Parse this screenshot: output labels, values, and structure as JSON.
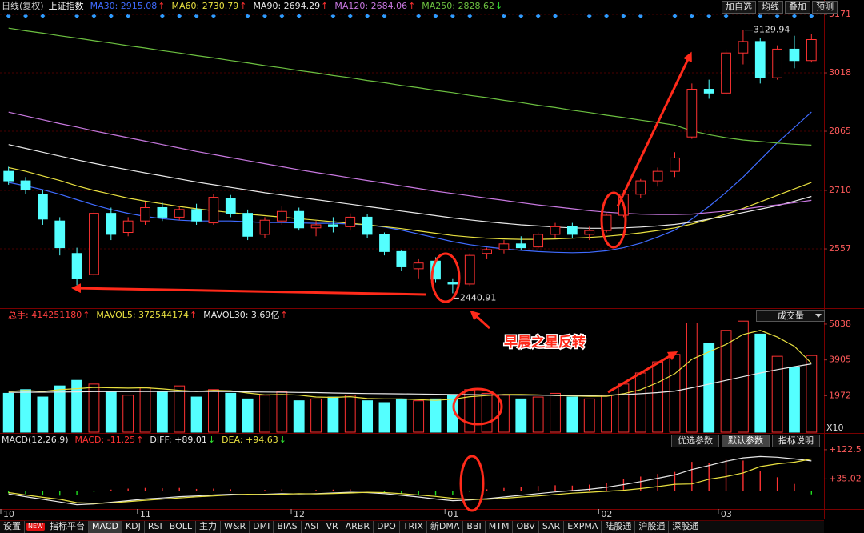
{
  "ui": {
    "period": "日线(复权)",
    "symbol": "上证指数",
    "buttons": [
      "加自选",
      "均线",
      "叠加",
      "预测"
    ],
    "volume_selector": "成交量",
    "indicator_buttons": [
      "优选参数",
      "默认参数",
      "指标说明"
    ],
    "active_indicator_button": 1,
    "tabs": [
      "设置",
      "NEW",
      "指标平台",
      "MACD",
      "KDJ",
      "RSI",
      "BOLL",
      "主力",
      "W&R",
      "DMI",
      "BIAS",
      "ASI",
      "VR",
      "ARBR",
      "DPO",
      "TRIX",
      "新DMA",
      "BBI",
      "MTM",
      "OBV",
      "SAR",
      "EXPMA",
      "陆股通",
      "沪股通",
      "深股通"
    ],
    "badge_tab": 1,
    "active_tab": 3
  },
  "chart_data": [
    {
      "type": "candlestick",
      "annotation": "早晨之星反转",
      "categories": [
        "10",
        null,
        null,
        null,
        null,
        null,
        null,
        null,
        "11",
        null,
        null,
        null,
        null,
        null,
        null,
        null,
        null,
        "12",
        null,
        null,
        null,
        null,
        null,
        null,
        null,
        null,
        "01",
        null,
        null,
        null,
        null,
        null,
        null,
        null,
        null,
        "02",
        null,
        null,
        null,
        null,
        null,
        null,
        "03",
        null,
        null,
        null,
        null,
        null
      ],
      "open": [
        2760,
        2735,
        2700,
        2630,
        2545,
        2490,
        2650,
        2600,
        2630,
        2665,
        2640,
        2660,
        2625,
        2690,
        2650,
        2595,
        2630,
        2655,
        2612,
        2620,
        2615,
        2640,
        2595,
        2550,
        2505,
        2525,
        2470,
        2465,
        2545,
        2555,
        2570,
        2562,
        2595,
        2615,
        2595,
        2605,
        2645,
        2700,
        2735,
        2760,
        2850,
        2975,
        2965,
        3070,
        3100,
        3005,
        3080,
        3050
      ],
      "high": [
        2772,
        2745,
        2710,
        2640,
        2560,
        2660,
        2665,
        2640,
        2680,
        2678,
        2670,
        2675,
        2700,
        2698,
        2660,
        2640,
        2668,
        2665,
        2630,
        2640,
        2650,
        2648,
        2600,
        2555,
        2530,
        2535,
        2480,
        2545,
        2560,
        2580,
        2590,
        2600,
        2625,
        2625,
        2615,
        2650,
        2710,
        2740,
        2770,
        2810,
        2990,
        3000,
        3080,
        3129.94,
        3110,
        3090,
        3115,
        3120
      ],
      "low": [
        2725,
        2700,
        2620,
        2540,
        2462,
        2485,
        2580,
        2590,
        2620,
        2630,
        2632,
        2620,
        2620,
        2640,
        2580,
        2585,
        2620,
        2605,
        2590,
        2600,
        2605,
        2585,
        2540,
        2500,
        2480,
        2470,
        2440.91,
        2460,
        2530,
        2545,
        2555,
        2558,
        2585,
        2585,
        2580,
        2600,
        2640,
        2690,
        2720,
        2745,
        2845,
        2950,
        2960,
        3040,
        2990,
        3000,
        3030,
        3045
      ],
      "close": [
        2735,
        2712,
        2635,
        2560,
        2480,
        2650,
        2595,
        2630,
        2665,
        2640,
        2660,
        2630,
        2692,
        2650,
        2590,
        2632,
        2655,
        2612,
        2620,
        2615,
        2640,
        2595,
        2550,
        2510,
        2520,
        2478,
        2465,
        2540,
        2555,
        2570,
        2560,
        2595,
        2615,
        2595,
        2605,
        2645,
        2700,
        2735,
        2760,
        2795,
        2975,
        2965,
        3070,
        3100,
        3005,
        3080,
        3050,
        3105
      ],
      "up_color": "#ff3232",
      "down_color": "#54ffff",
      "ylim": [
        2402,
        3171
      ],
      "yticks": [
        2557,
        2710,
        2865,
        3018,
        3171
      ],
      "grid": true,
      "series": [
        {
          "name": "MA30: 2915.08",
          "arrow": "↑",
          "arrow_color": "#ff3030",
          "color": "#3f6bff",
          "values": [
            2731,
            2722,
            2712,
            2700,
            2686,
            2672,
            2660,
            2650,
            2642,
            2636,
            2632,
            2630,
            2630,
            2630,
            2628,
            2626,
            2626,
            2625,
            2624,
            2624,
            2622,
            2620,
            2614,
            2606,
            2596,
            2586,
            2576,
            2568,
            2562,
            2557,
            2553,
            2550,
            2548,
            2547,
            2548,
            2552,
            2560,
            2572,
            2588,
            2606,
            2635,
            2668,
            2705,
            2745,
            2790,
            2835,
            2875,
            2915.08
          ]
        },
        {
          "name": "MA60: 2730.79",
          "arrow": "↑",
          "arrow_color": "#ff3030",
          "color": "#e8e040",
          "values": [
            2770,
            2760,
            2748,
            2736,
            2722,
            2710,
            2700,
            2690,
            2682,
            2675,
            2668,
            2662,
            2657,
            2652,
            2648,
            2644,
            2640,
            2636,
            2632,
            2628,
            2624,
            2620,
            2615,
            2610,
            2604,
            2598,
            2592,
            2588,
            2585,
            2583,
            2582,
            2582,
            2583,
            2585,
            2587,
            2590,
            2594,
            2599,
            2605,
            2612,
            2622,
            2634,
            2648,
            2663,
            2680,
            2697,
            2714,
            2730.79
          ]
        },
        {
          "name": "MA90: 2694.29",
          "arrow": "↑",
          "arrow_color": "#ff3030",
          "color": "#e8e8e8",
          "values": [
            2830,
            2820,
            2810,
            2800,
            2790,
            2781,
            2772,
            2764,
            2756,
            2748,
            2740,
            2732,
            2725,
            2718,
            2711,
            2704,
            2698,
            2692,
            2686,
            2680,
            2674,
            2668,
            2662,
            2656,
            2650,
            2644,
            2638,
            2633,
            2628,
            2624,
            2620,
            2617,
            2614,
            2612,
            2611,
            2611,
            2612,
            2614,
            2617,
            2621,
            2627,
            2635,
            2643,
            2652,
            2661,
            2670,
            2682,
            2694.29
          ]
        },
        {
          "name": "MA120: 2684.06",
          "arrow": "↑",
          "arrow_color": "#ff3030",
          "color": "#c878e0",
          "values": [
            2915,
            2905,
            2895,
            2885,
            2876,
            2866,
            2857,
            2848,
            2839,
            2830,
            2821,
            2812,
            2804,
            2796,
            2788,
            2780,
            2772,
            2764,
            2757,
            2750,
            2743,
            2736,
            2729,
            2722,
            2715,
            2708,
            2702,
            2696,
            2690,
            2684,
            2678,
            2672,
            2667,
            2662,
            2657,
            2653,
            2650,
            2648,
            2647,
            2647,
            2648,
            2652,
            2656,
            2661,
            2667,
            2672,
            2678,
            2684.06
          ]
        },
        {
          "name": "MA250: 2828.62",
          "arrow": "↓",
          "arrow_color": "#30e030",
          "color": "#6cc040",
          "values": [
            3135,
            3128,
            3122,
            3115,
            3109,
            3102,
            3096,
            3089,
            3083,
            3076,
            3070,
            3063,
            3057,
            3050,
            3044,
            3037,
            3031,
            3024,
            3018,
            3011,
            3005,
            2998,
            2992,
            2985,
            2979,
            2972,
            2966,
            2959,
            2953,
            2946,
            2940,
            2933,
            2927,
            2920,
            2914,
            2907,
            2901,
            2894,
            2888,
            2881,
            2866,
            2856,
            2848,
            2842,
            2838,
            2834,
            2831,
            2828.62
          ]
        }
      ]
    },
    {
      "type": "bar",
      "ylim": [
        0,
        6268
      ],
      "yticks": [
        1972,
        3905,
        5838
      ],
      "y_unit": "X10",
      "series": [
        {
          "name": "总手: 414251180",
          "arrow": "↑",
          "arrow_color": "#ff3030",
          "color": "#ff4040",
          "kind": "bar",
          "up_color": "#ff3232",
          "down_color": "#54ffff",
          "values": [
            2100,
            2300,
            1900,
            2500,
            2800,
            2600,
            2200,
            2000,
            2400,
            2200,
            2500,
            1900,
            2300,
            2100,
            1800,
            2000,
            2200,
            1700,
            1800,
            1900,
            2000,
            1700,
            1600,
            1800,
            1700,
            1800,
            2000,
            2300,
            2100,
            2000,
            1800,
            1900,
            2100,
            1900,
            1800,
            2000,
            2600,
            3200,
            3800,
            4200,
            5900,
            4800,
            5500,
            6000,
            5300,
            4100,
            3500,
            4143
          ]
        },
        {
          "name": "MAVOL5: 372544174",
          "arrow": "↑",
          "arrow_color": "#ff3030",
          "color": "#e8e040",
          "kind": "line",
          "values": [
            2200,
            2250,
            2200,
            2300,
            2350,
            2420,
            2400,
            2380,
            2400,
            2340,
            2260,
            2200,
            2260,
            2240,
            2120,
            2020,
            2040,
            2000,
            1900,
            1880,
            1920,
            1820,
            1800,
            1800,
            1760,
            1720,
            1780,
            1920,
            1980,
            2040,
            2040,
            2020,
            1980,
            1960,
            1940,
            1940,
            2080,
            2300,
            2680,
            3160,
            3940,
            4340,
            4740,
            5280,
            5500,
            5140,
            4640,
            3725
          ]
        },
        {
          "name": "MAVOL30: 3.69亿",
          "arrow": "↑",
          "arrow_color": "#ff3030",
          "color": "#e8e8e8",
          "kind": "line",
          "values": [
            2150,
            2160,
            2160,
            2170,
            2180,
            2190,
            2190,
            2190,
            2200,
            2200,
            2200,
            2200,
            2200,
            2190,
            2180,
            2170,
            2160,
            2150,
            2140,
            2120,
            2100,
            2090,
            2080,
            2070,
            2060,
            2050,
            2040,
            2030,
            2020,
            2010,
            2000,
            2000,
            1990,
            1990,
            1990,
            2000,
            2030,
            2080,
            2140,
            2220,
            2400,
            2600,
            2800,
            3000,
            3200,
            3380,
            3540,
            3690
          ]
        }
      ]
    },
    {
      "type": "bar",
      "title": "MACD(12,26,9)",
      "ylim": [
        -55,
        139
      ],
      "yticks": [
        {
          "value": 35.02,
          "label": "+35.02"
        },
        {
          "value": 122.5,
          "label": "+122.5"
        }
      ],
      "series": [
        {
          "name": "MACD: -11.25",
          "arrow": "↑",
          "arrow_color": "#ff3030",
          "color": "#ff3232",
          "negative_color": "#20e020",
          "kind": "stick",
          "values": [
            -8,
            -10,
            -12,
            -15,
            -12,
            -4,
            3,
            6,
            8,
            7,
            8,
            5,
            6,
            4,
            -2,
            2,
            4,
            -2,
            2,
            3,
            4,
            -2,
            -6,
            -10,
            -12,
            -15,
            -14,
            -4,
            4,
            8,
            10,
            14,
            16,
            15,
            18,
            24,
            34,
            42,
            50,
            56,
            86,
            82,
            92,
            90,
            60,
            40,
            20,
            -11.25
          ]
        },
        {
          "name": "DIFF: +89.01",
          "arrow": "↓",
          "arrow_color": "#30e030",
          "color": "#e8e8e8",
          "kind": "line",
          "values": [
            -10,
            -18,
            -26,
            -34,
            -42,
            -40,
            -35,
            -30,
            -25,
            -22,
            -18,
            -16,
            -13,
            -11,
            -12,
            -11,
            -9,
            -10,
            -9,
            -7,
            -5,
            -6,
            -9,
            -14,
            -19,
            -25,
            -30,
            -28,
            -24,
            -19,
            -14,
            -9,
            -4,
            0,
            4,
            10,
            18,
            27,
            37,
            47,
            63,
            75,
            88,
            98,
            102,
            100,
            95,
            89.01
          ]
        },
        {
          "name": "DEA: +94.63",
          "arrow": "↓",
          "arrow_color": "#30e030",
          "color": "#e8e040",
          "kind": "line",
          "values": [
            -6,
            -13,
            -20,
            -26,
            -36,
            -38,
            -36.5,
            -33,
            -29,
            -25.5,
            -22,
            -18.5,
            -16,
            -13,
            -11,
            -12,
            -11,
            -9,
            -10,
            -8.5,
            -7,
            -5,
            -6,
            -9,
            -13,
            -17.5,
            -23,
            -26,
            -26,
            -23,
            -19,
            -16,
            -12,
            -7.5,
            -5,
            -2,
            1,
            6,
            12,
            19,
            20,
            34,
            42,
            53,
            72,
            80,
            85,
            94.63
          ]
        }
      ]
    }
  ]
}
